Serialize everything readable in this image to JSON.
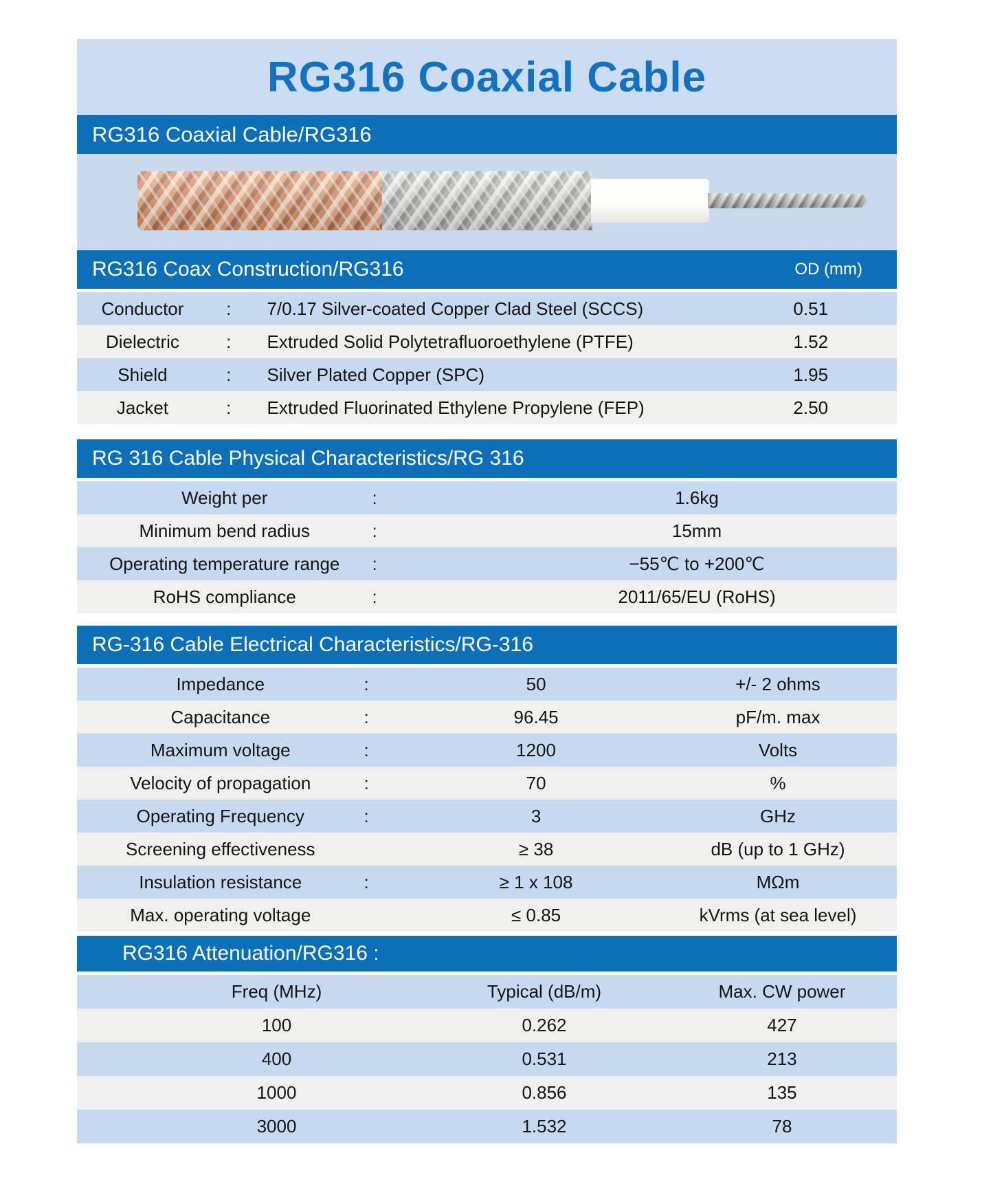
{
  "page": {
    "title": "RG316 Coaxial Cable",
    "subtitle_bar": "RG316 Coaxial Cable/RG316"
  },
  "colors": {
    "bar_blue": "#0d6fb8",
    "panel_light_blue": "#c9daef",
    "row_light_blue": "#c6d9f0",
    "row_white": "#f0f0ee",
    "title_text_blue": "#1271c1"
  },
  "construction": {
    "header": "RG316 Coax Construction/RG316",
    "od_header": "OD (mm)",
    "rows": [
      {
        "label": "Conductor",
        "colon": ":",
        "desc": "7/0.17 Silver-coated Copper Clad Steel (SCCS)",
        "od": "0.51"
      },
      {
        "label": "Dielectric",
        "colon": ":",
        "desc": "Extruded Solid Polytetrafluoroethylene (PTFE)",
        "od": "1.52"
      },
      {
        "label": "Shield",
        "colon": ":",
        "desc": "Silver Plated Copper (SPC)",
        "od": "1.95"
      },
      {
        "label": "Jacket",
        "colon": ":",
        "desc": "Extruded Fluorinated Ethylene Propylene (FEP)",
        "od": "2.50"
      }
    ]
  },
  "physical": {
    "header": "RG 316 Cable Physical Characteristics/RG 316",
    "rows": [
      {
        "label": "Weight per",
        "colon": ":",
        "value": "1.6kg"
      },
      {
        "label": "Minimum bend radius",
        "colon": ":",
        "value": "15mm"
      },
      {
        "label": "Operating temperature range",
        "colon": ":",
        "value": "−55℃ to +200℃"
      },
      {
        "label": "RoHS compliance",
        "colon": ":",
        "value": "2011/65/EU (RoHS)"
      }
    ]
  },
  "electrical": {
    "header": "RG-316 Cable Electrical Characteristics/RG-316",
    "rows": [
      {
        "label": "Impedance",
        "colon": ":",
        "value": "50",
        "unit": "+/- 2 ohms"
      },
      {
        "label": "Capacitance",
        "colon": ":",
        "value": "96.45",
        "unit": "pF/m. max"
      },
      {
        "label": "Maximum voltage",
        "colon": ":",
        "value": "1200",
        "unit": "Volts"
      },
      {
        "label": "Velocity of propagation",
        "colon": ":",
        "value": "70",
        "unit": "%"
      },
      {
        "label": "Operating Frequency",
        "colon": ":",
        "value": "3",
        "unit": "GHz"
      },
      {
        "label": "Screening effectiveness",
        "colon": "",
        "value": "≥ 38",
        "unit": "dB (up to 1 GHz)"
      },
      {
        "label": "Insulation resistance",
        "colon": ":",
        "value": "≥ 1 x 108",
        "unit": "MΩm"
      },
      {
        "label": "Max. operating voltage",
        "colon": "",
        "value": "≤ 0.85",
        "unit": "kVrms (at sea level)"
      }
    ]
  },
  "attenuation": {
    "header": "RG316 Attenuation/RG316 :",
    "columns": [
      "Freq (MHz)",
      "Typical (dB/m)",
      "Max. CW power"
    ],
    "rows": [
      [
        "100",
        "0.262",
        "427"
      ],
      [
        "400",
        "0.531",
        "213"
      ],
      [
        "1000",
        "0.856",
        "135"
      ],
      [
        "3000",
        "1.532",
        "78"
      ]
    ]
  }
}
